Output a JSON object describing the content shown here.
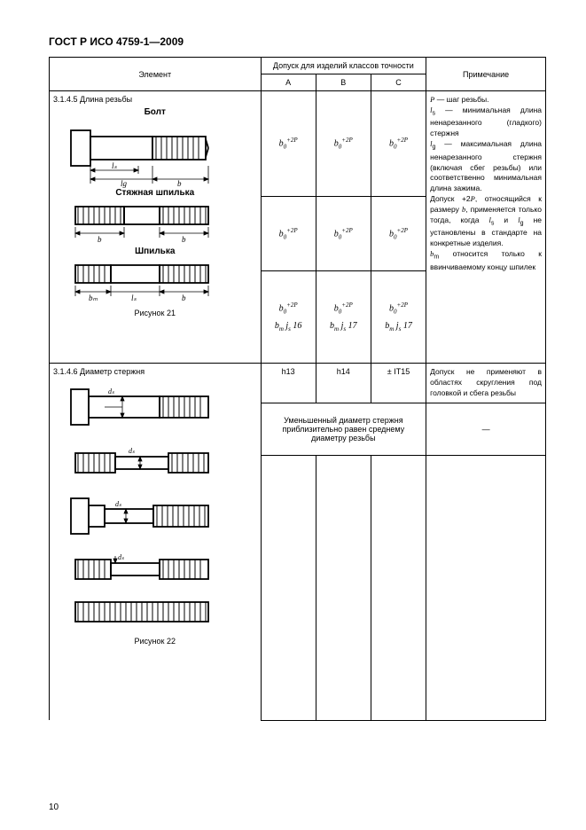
{
  "doc": {
    "title": "ГОСТ Р ИСО 4759-1—2009",
    "page_number": "10"
  },
  "headers": {
    "element": "Элемент",
    "tolerance_group": "Допуск для изделий классов точности",
    "colA": "A",
    "colB": "B",
    "colC": "C",
    "note": "Примечание"
  },
  "row1": {
    "section": "3.1.4.5 Длина резьбы",
    "label_bolt": "Болт",
    "label_stud_tie": "Стяжная шпилька",
    "label_stud": "Шпилька",
    "fig": "Рисунок 21",
    "tol_b0_2p": "b₀⁺²ᴾ",
    "bm_js16": "bₘ js 16",
    "bm_js17_b": "bₘ js 17",
    "bm_js17_c": "bₘ js 17",
    "note_html": "  <i>P</i> — шаг резьбы.<br>  <i>l</i><sub>s</sub> — минимальная длина ненарезанного (гладкого) стержня<br>  <i>l</i><sub>g</sub> — максимальная длина ненарезанного стержня (включая сбег резьбы) или соответственно минимальная длина зажима.<br>  Допуск +2<i>P</i>, относящийся к размеру <i>b</i>, применяется только тогда, когда <i>l</i><sub>s</sub> и <i>l</i><sub>g</sub> не установлены в стандарте на конкретные изделия.<br>  <i>b</i><sub>m</sub> относится только к ввинчиваемому концу шпилек"
  },
  "row2": {
    "section": "3.1.4.6 Диаметр стержня",
    "tolA": "h13",
    "tolB": "h14",
    "tolC": "± IT15",
    "reduced_note": "Уменьшенный диаметр стержня приблизительно равен среднему диаметру резьбы",
    "dash": "—",
    "note_html": "  Допуск не применяют в областях скругления под головкой и сбега резьбы",
    "fig": "Рисунок 22"
  },
  "svg_labels": {
    "ls": "lₛ",
    "b": "b",
    "bm": "bₘ",
    "ds": "dₛ"
  }
}
